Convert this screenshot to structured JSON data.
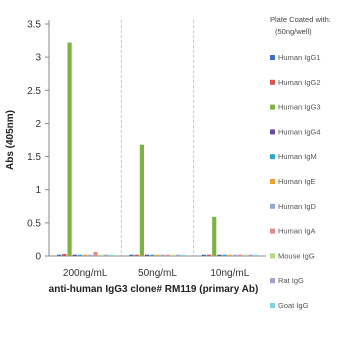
{
  "chart_data": {
    "type": "bar",
    "xlabel": "anti-human IgG3 clone# RM119 (primary Ab)",
    "ylabel": "Abs (405nm)",
    "ylim": [
      0,
      3.5
    ],
    "yticks": [
      "0",
      "0.5",
      "1",
      "1.5",
      "2",
      "2.5",
      "3",
      "3.5"
    ],
    "categories": [
      "200ng/mL",
      "50ng/mL",
      "10ng/mL"
    ],
    "grid": "vertical dashed separators",
    "legend_position": "right",
    "legend_title_line1": "Plate Coated with:",
    "legend_title_line2": "(50ng/well)",
    "series": [
      {
        "name": "Human IgG1",
        "color": "#3a6fc4",
        "values": [
          0.02,
          0.02,
          0.02
        ]
      },
      {
        "name": "Human IgG2",
        "color": "#d9534f",
        "values": [
          0.03,
          0.02,
          0.02
        ]
      },
      {
        "name": "Human IgG3",
        "color": "#7cb342",
        "values": [
          3.22,
          1.68,
          0.59
        ]
      },
      {
        "name": "Human IgG4",
        "color": "#6a4c9c",
        "values": [
          0.02,
          0.02,
          0.02
        ]
      },
      {
        "name": "Human IgM",
        "color": "#2aa7c9",
        "values": [
          0.02,
          0.02,
          0.02
        ]
      },
      {
        "name": "Human IgE",
        "color": "#f0a030",
        "values": [
          0.02,
          0.02,
          0.02
        ]
      },
      {
        "name": "Human IgD",
        "color": "#93a9d6",
        "values": [
          0.02,
          0.02,
          0.02
        ]
      },
      {
        "name": "Human IgA",
        "color": "#e08a8a",
        "values": [
          0.06,
          0.02,
          0.02
        ]
      },
      {
        "name": "Mouse IgG",
        "color": "#b8d98a",
        "values": [
          0.02,
          0.02,
          0.02
        ]
      },
      {
        "name": "Rat IgG",
        "color": "#a99bc9",
        "values": [
          0.02,
          0.02,
          0.02
        ]
      },
      {
        "name": "Goat IgG",
        "color": "#7fd3e3",
        "values": [
          0.02,
          0.02,
          0.02
        ]
      }
    ]
  }
}
